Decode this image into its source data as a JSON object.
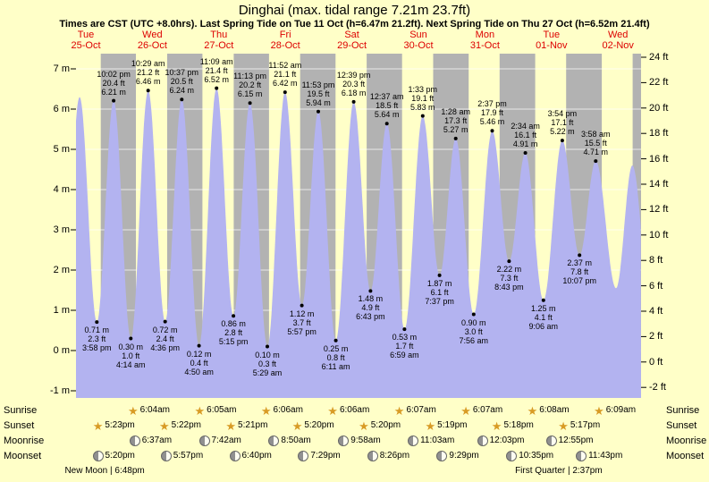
{
  "page": {
    "background": "#ffffc8"
  },
  "header": {
    "title": "Dinghai (max. tidal range 7.21m 23.7ft)",
    "subtitle": "Times are CST (UTC +8.0hrs). Last Spring Tide on Tue 11 Oct (h=6.47m 21.2ft). Next Spring Tide on Thu 27 Oct (h=6.52m 21.4ft)"
  },
  "chart_data": {
    "type": "area",
    "title": "Dinghai (max. tidal range 7.21m 23.7ft)",
    "timezone_note": "Times are CST (UTC +8.0hrs)",
    "y_axis_left": {
      "unit": "m",
      "min": -1,
      "max": 7,
      "step": 1
    },
    "y_axis_right": {
      "unit": "ft",
      "min": -2,
      "max": 24,
      "step": 2
    },
    "axis_left_ticks": [
      "7 m",
      "6 m",
      "5 m",
      "4 m",
      "3 m",
      "2 m",
      "1 m",
      "0 m",
      "-1 m"
    ],
    "axis_right_ticks": [
      "24 ft",
      "22 ft",
      "20 ft",
      "18 ft",
      "16 ft",
      "14 ft",
      "12 ft",
      "10 ft",
      "8 ft",
      "6 ft",
      "4 ft",
      "2 ft",
      "0 ft",
      "-2 ft"
    ],
    "days": [
      {
        "weekday": "Tue",
        "date": "25-Oct"
      },
      {
        "weekday": "Wed",
        "date": "26-Oct"
      },
      {
        "weekday": "Thu",
        "date": "27-Oct"
      },
      {
        "weekday": "Fri",
        "date": "28-Oct"
      },
      {
        "weekday": "Sat",
        "date": "29-Oct"
      },
      {
        "weekday": "Sun",
        "date": "30-Oct"
      },
      {
        "weekday": "Mon",
        "date": "31-Oct"
      },
      {
        "weekday": "Tue",
        "date": "01-Nov"
      },
      {
        "weekday": "Wed",
        "date": "02-Nov"
      }
    ],
    "tide_events": [
      {
        "type": "low",
        "day": 0,
        "time": "3:58 pm",
        "height_m": 0.71,
        "height_ft": 2.3
      },
      {
        "type": "high",
        "day": 0,
        "time": "10:02 pm",
        "height_m": 6.21,
        "height_ft": 20.4
      },
      {
        "type": "low",
        "day": 1,
        "time": "4:14 am",
        "height_m": 0.3,
        "height_ft": 1.0
      },
      {
        "type": "high",
        "day": 1,
        "time": "10:29 am",
        "height_m": 6.46,
        "height_ft": 21.2
      },
      {
        "type": "low",
        "day": 1,
        "time": "4:36 pm",
        "height_m": 0.72,
        "height_ft": 2.4
      },
      {
        "type": "high",
        "day": 1,
        "time": "10:37 pm",
        "height_m": 6.24,
        "height_ft": 20.5
      },
      {
        "type": "low",
        "day": 2,
        "time": "4:50 am",
        "height_m": 0.12,
        "height_ft": 0.4
      },
      {
        "type": "high",
        "day": 2,
        "time": "11:09 am",
        "height_m": 6.52,
        "height_ft": 21.4
      },
      {
        "type": "low",
        "day": 2,
        "time": "5:15 pm",
        "height_m": 0.86,
        "height_ft": 2.8
      },
      {
        "type": "high",
        "day": 2,
        "time": "11:13 pm",
        "height_m": 6.15,
        "height_ft": 20.2
      },
      {
        "type": "low",
        "day": 3,
        "time": "5:29 am",
        "height_m": 0.1,
        "height_ft": 0.3
      },
      {
        "type": "high",
        "day": 3,
        "time": "11:52 am",
        "height_m": 6.42,
        "height_ft": 21.1
      },
      {
        "type": "low",
        "day": 3,
        "time": "5:57 pm",
        "height_m": 1.12,
        "height_ft": 3.7
      },
      {
        "type": "high",
        "day": 3,
        "time": "11:53 pm",
        "height_m": 5.94,
        "height_ft": 19.5
      },
      {
        "type": "low",
        "day": 4,
        "time": "6:11 am",
        "height_m": 0.25,
        "height_ft": 0.8
      },
      {
        "type": "high",
        "day": 4,
        "time": "12:39 pm",
        "height_m": 6.18,
        "height_ft": 20.3
      },
      {
        "type": "low",
        "day": 4,
        "time": "6:43 pm",
        "height_m": 1.48,
        "height_ft": 4.9
      },
      {
        "type": "high",
        "day": 5,
        "time": "12:37 am",
        "height_m": 5.64,
        "height_ft": 18.5
      },
      {
        "type": "low",
        "day": 5,
        "time": "6:59 am",
        "height_m": 0.53,
        "height_ft": 1.7
      },
      {
        "type": "high",
        "day": 5,
        "time": "1:33 pm",
        "height_m": 5.83,
        "height_ft": 19.1
      },
      {
        "type": "low",
        "day": 5,
        "time": "7:37 pm",
        "height_m": 1.87,
        "height_ft": 6.1
      },
      {
        "type": "high",
        "day": 6,
        "time": "1:28 am",
        "height_m": 5.27,
        "height_ft": 17.3
      },
      {
        "type": "low",
        "day": 6,
        "time": "7:56 am",
        "height_m": 0.9,
        "height_ft": 3.0
      },
      {
        "type": "high",
        "day": 6,
        "time": "2:37 pm",
        "height_m": 5.46,
        "height_ft": 17.9
      },
      {
        "type": "low",
        "day": 6,
        "time": "8:43 pm",
        "height_m": 2.22,
        "height_ft": 7.3
      },
      {
        "type": "high",
        "day": 7,
        "time": "2:34 am",
        "height_m": 4.91,
        "height_ft": 16.1
      },
      {
        "type": "low",
        "day": 7,
        "time": "9:06 am",
        "height_m": 1.25,
        "height_ft": 4.1
      },
      {
        "type": "high",
        "day": 7,
        "time": "3:54 pm",
        "height_m": 5.22,
        "height_ft": 17.1
      },
      {
        "type": "low",
        "day": 7,
        "time": "10:07 pm",
        "height_m": 2.37,
        "height_ft": 7.8
      },
      {
        "type": "high",
        "day": 8,
        "time": "3:58 am",
        "height_m": 4.71,
        "height_ft": 15.5
      }
    ],
    "curve_edge_anchors": [
      {
        "day": 0,
        "hour": 3.5,
        "height_m": 0.55
      },
      {
        "day": 0,
        "hour": 9.75,
        "height_m": 6.3
      },
      {
        "day": 8,
        "hour": 11.3,
        "height_m": 1.55
      },
      {
        "day": 8,
        "hour": 17.2,
        "height_m": 4.6
      },
      {
        "day": 9,
        "hour": 0,
        "height_m": 0.9
      }
    ],
    "colors": {
      "tide_fill": "#b3b3f0",
      "day_band": "#ffffc8",
      "night_band": "#b2b2b2",
      "date_label": "#dd0000",
      "gridline": "#ffffff"
    }
  },
  "almanac": {
    "row_labels": [
      "Sunrise",
      "Sunset",
      "Moonrise",
      "Moonset"
    ],
    "sunrise": [
      {
        "day": 1,
        "time": "6:04am"
      },
      {
        "day": 2,
        "time": "6:05am"
      },
      {
        "day": 3,
        "time": "6:06am"
      },
      {
        "day": 4,
        "time": "6:06am"
      },
      {
        "day": 5,
        "time": "6:07am"
      },
      {
        "day": 6,
        "time": "6:07am"
      },
      {
        "day": 7,
        "time": "6:08am"
      },
      {
        "day": 8,
        "time": "6:09am"
      }
    ],
    "sunset": [
      {
        "day": 0,
        "time": "5:23pm"
      },
      {
        "day": 1,
        "time": "5:22pm"
      },
      {
        "day": 2,
        "time": "5:21pm"
      },
      {
        "day": 3,
        "time": "5:20pm"
      },
      {
        "day": 4,
        "time": "5:20pm"
      },
      {
        "day": 5,
        "time": "5:19pm"
      },
      {
        "day": 6,
        "time": "5:18pm"
      },
      {
        "day": 7,
        "time": "5:17pm"
      }
    ],
    "moonrise": [
      {
        "day": 1,
        "time": "6:37am"
      },
      {
        "day": 2,
        "time": "7:42am"
      },
      {
        "day": 3,
        "time": "8:50am"
      },
      {
        "day": 4,
        "time": "9:58am"
      },
      {
        "day": 5,
        "time": "11:03am"
      },
      {
        "day": 6,
        "time": "12:03pm"
      },
      {
        "day": 7,
        "time": "12:55pm"
      }
    ],
    "moonset": [
      {
        "day": 0,
        "time": "5:20pm"
      },
      {
        "day": 1,
        "time": "5:57pm"
      },
      {
        "day": 2,
        "time": "6:40pm"
      },
      {
        "day": 3,
        "time": "7:29pm"
      },
      {
        "day": 4,
        "time": "8:26pm"
      },
      {
        "day": 5,
        "time": "9:29pm"
      },
      {
        "day": 6,
        "time": "10:35pm"
      },
      {
        "day": 7,
        "time": "11:43pm"
      }
    ],
    "phases": [
      {
        "name": "New Moon",
        "time": "6:48pm",
        "day": 0
      },
      {
        "name": "First Quarter",
        "time": "2:37pm",
        "day": 7
      }
    ]
  }
}
